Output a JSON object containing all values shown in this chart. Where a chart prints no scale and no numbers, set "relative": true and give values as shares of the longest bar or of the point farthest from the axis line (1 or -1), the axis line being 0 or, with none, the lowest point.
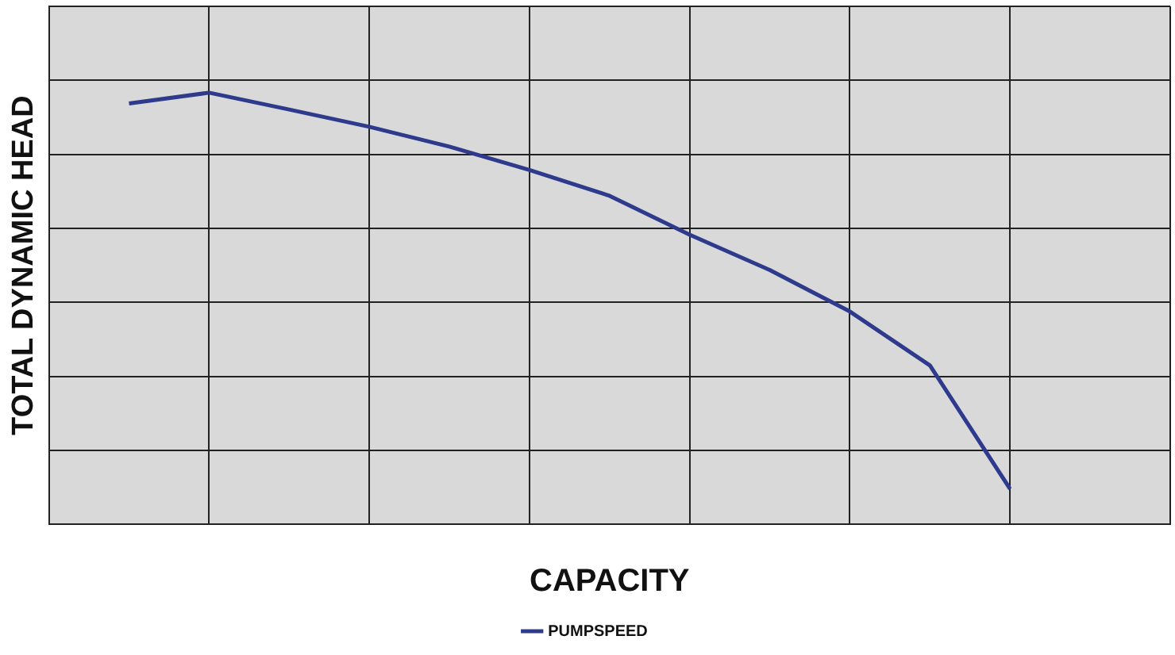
{
  "chart_data": {
    "type": "line",
    "relative": true,
    "xlabel": "CAPACITY",
    "ylabel": "TOTAL DYNAMIC HEAD",
    "categories": [
      null,
      null,
      null,
      null,
      null,
      null,
      null,
      null,
      null,
      null,
      null,
      null,
      null,
      null,
      null
    ],
    "series": [
      {
        "name": "PUMPSPEED",
        "color": "#2e3a8c",
        "values": [
          null,
          0.975,
          1,
          0.961,
          0.921,
          0.875,
          0.821,
          0.761,
          0.671,
          0.589,
          0.493,
          0.368,
          0.082,
          null,
          null
        ]
      }
    ],
    "grid": true,
    "legend": "bottom",
    "marker": "none",
    "line_style": "solid"
  }
}
